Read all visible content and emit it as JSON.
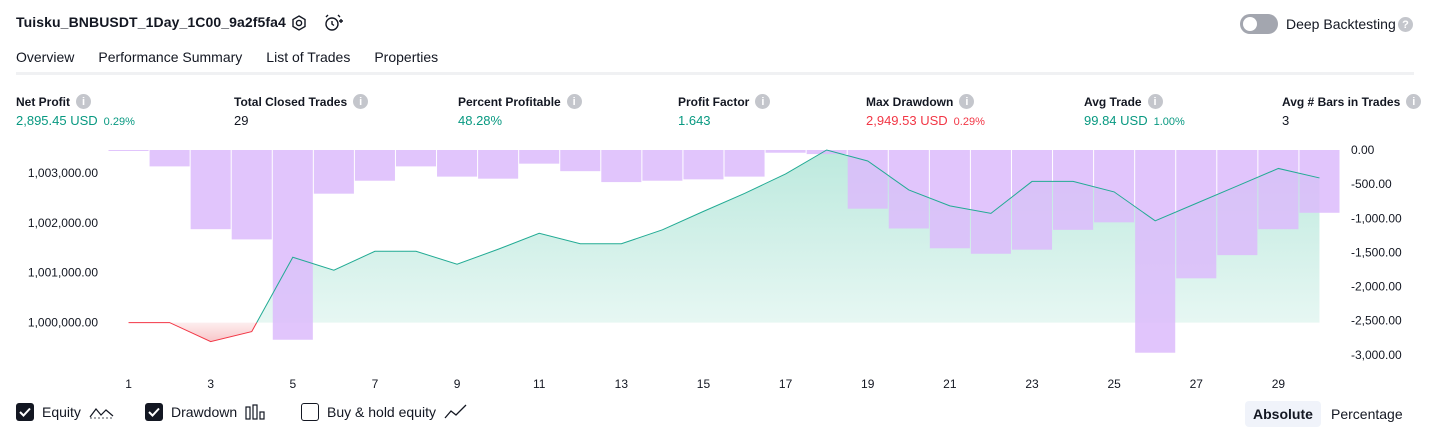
{
  "header": {
    "strategy_title": "Tuisku_BNBUSDT_1Day_1C00_9a2f5fa4",
    "deep_backtesting_label": "Deep Backtesting",
    "deep_backtesting_on": false
  },
  "tabs": [
    {
      "label": "Overview",
      "active": true
    },
    {
      "label": "Performance Summary",
      "active": false
    },
    {
      "label": "List of Trades",
      "active": false
    },
    {
      "label": "Properties",
      "active": false
    }
  ],
  "metrics": [
    {
      "label": "Net Profit",
      "value": "2,895.45 USD",
      "pct": "0.29%",
      "color": "#089981"
    },
    {
      "label": "Total Closed Trades",
      "value": "29",
      "pct": "",
      "color": "#131722"
    },
    {
      "label": "Percent Profitable",
      "value": "48.28%",
      "pct": "",
      "color": "#089981"
    },
    {
      "label": "Profit Factor",
      "value": "1.643",
      "pct": "",
      "color": "#089981"
    },
    {
      "label": "Max Drawdown",
      "value": "2,949.53 USD",
      "pct": "0.29%",
      "color": "#f23645"
    },
    {
      "label": "Avg Trade",
      "value": "99.84 USD",
      "pct": "1.00%",
      "color": "#089981"
    },
    {
      "label": "Avg # Bars in Trades",
      "value": "3",
      "pct": "",
      "color": "#131722"
    }
  ],
  "chart_data": {
    "type": "line",
    "series": [
      {
        "name": "Equity",
        "x": [
          1,
          2,
          3,
          4,
          5,
          6,
          7,
          8,
          9,
          10,
          11,
          12,
          13,
          14,
          15,
          16,
          17,
          18,
          19,
          20,
          21,
          22,
          23,
          24,
          25,
          26,
          27,
          28,
          29,
          30
        ],
        "values": [
          1000000,
          1000000,
          999620,
          999820,
          1001310,
          1001050,
          1001430,
          1001430,
          1001170,
          1001470,
          1001790,
          1001580,
          1001580,
          1001860,
          1002230,
          1002590,
          1002980,
          1003460,
          1003240,
          1002660,
          1002340,
          1002190,
          1002830,
          1002830,
          1002620,
          1002040,
          1002390,
          1002740,
          1003090,
          1002900
        ]
      },
      {
        "name": "Drawdown",
        "type": "bar",
        "x": [
          1,
          2,
          3,
          4,
          5,
          6,
          7,
          8,
          9,
          10,
          11,
          12,
          13,
          14,
          15,
          16,
          17,
          18,
          19,
          20,
          21,
          22,
          23,
          24,
          25,
          26,
          27,
          28,
          29,
          30
        ],
        "values": [
          -10,
          -240,
          -1160,
          -1310,
          -2780,
          -640,
          -450,
          -240,
          -390,
          -420,
          -200,
          -310,
          -470,
          -450,
          -430,
          -390,
          -40,
          -60,
          -860,
          -1150,
          -1440,
          -1520,
          -1460,
          -1170,
          -1060,
          -2970,
          -1880,
          -1540,
          -1160,
          -920
        ]
      }
    ],
    "y_left": {
      "ticks": [
        "1,000,000.00",
        "1,001,000.00",
        "1,002,000.00",
        "1,003,000.00"
      ],
      "values": [
        1000000,
        1001000,
        1002000,
        1003000
      ],
      "range": [
        999150,
        1003460
      ]
    },
    "y_right": {
      "ticks": [
        "0.00",
        "-500.00",
        "-1,000.00",
        "-1,500.00",
        "-2,000.00",
        "-2,500.00",
        "-3,000.00"
      ],
      "values": [
        0,
        -500,
        -1000,
        -1500,
        -2000,
        -2500,
        -3000
      ],
      "range": [
        -3150,
        0
      ]
    },
    "x_ticks": [
      "1",
      "3",
      "5",
      "7",
      "9",
      "11",
      "13",
      "15",
      "17",
      "19",
      "21",
      "23",
      "25",
      "27",
      "29"
    ],
    "colors": {
      "equity_line": "#22ab94",
      "equity_fill": "#b9e8dc",
      "equity_neg_line": "#f23645",
      "equity_neg_fill": "#f8c6c9",
      "drawdown_bar": "#dcbbfc"
    }
  },
  "legend": [
    {
      "label": "Equity",
      "checked": true,
      "icon": "equity-wave-icon"
    },
    {
      "label": "Drawdown",
      "checked": true,
      "icon": "drawdown-bars-icon"
    },
    {
      "label": "Buy & hold equity",
      "checked": false,
      "icon": "buy-hold-line-icon"
    }
  ],
  "scale_toggle": {
    "absolute": "Absolute",
    "percentage": "Percentage",
    "selected": "Absolute"
  }
}
